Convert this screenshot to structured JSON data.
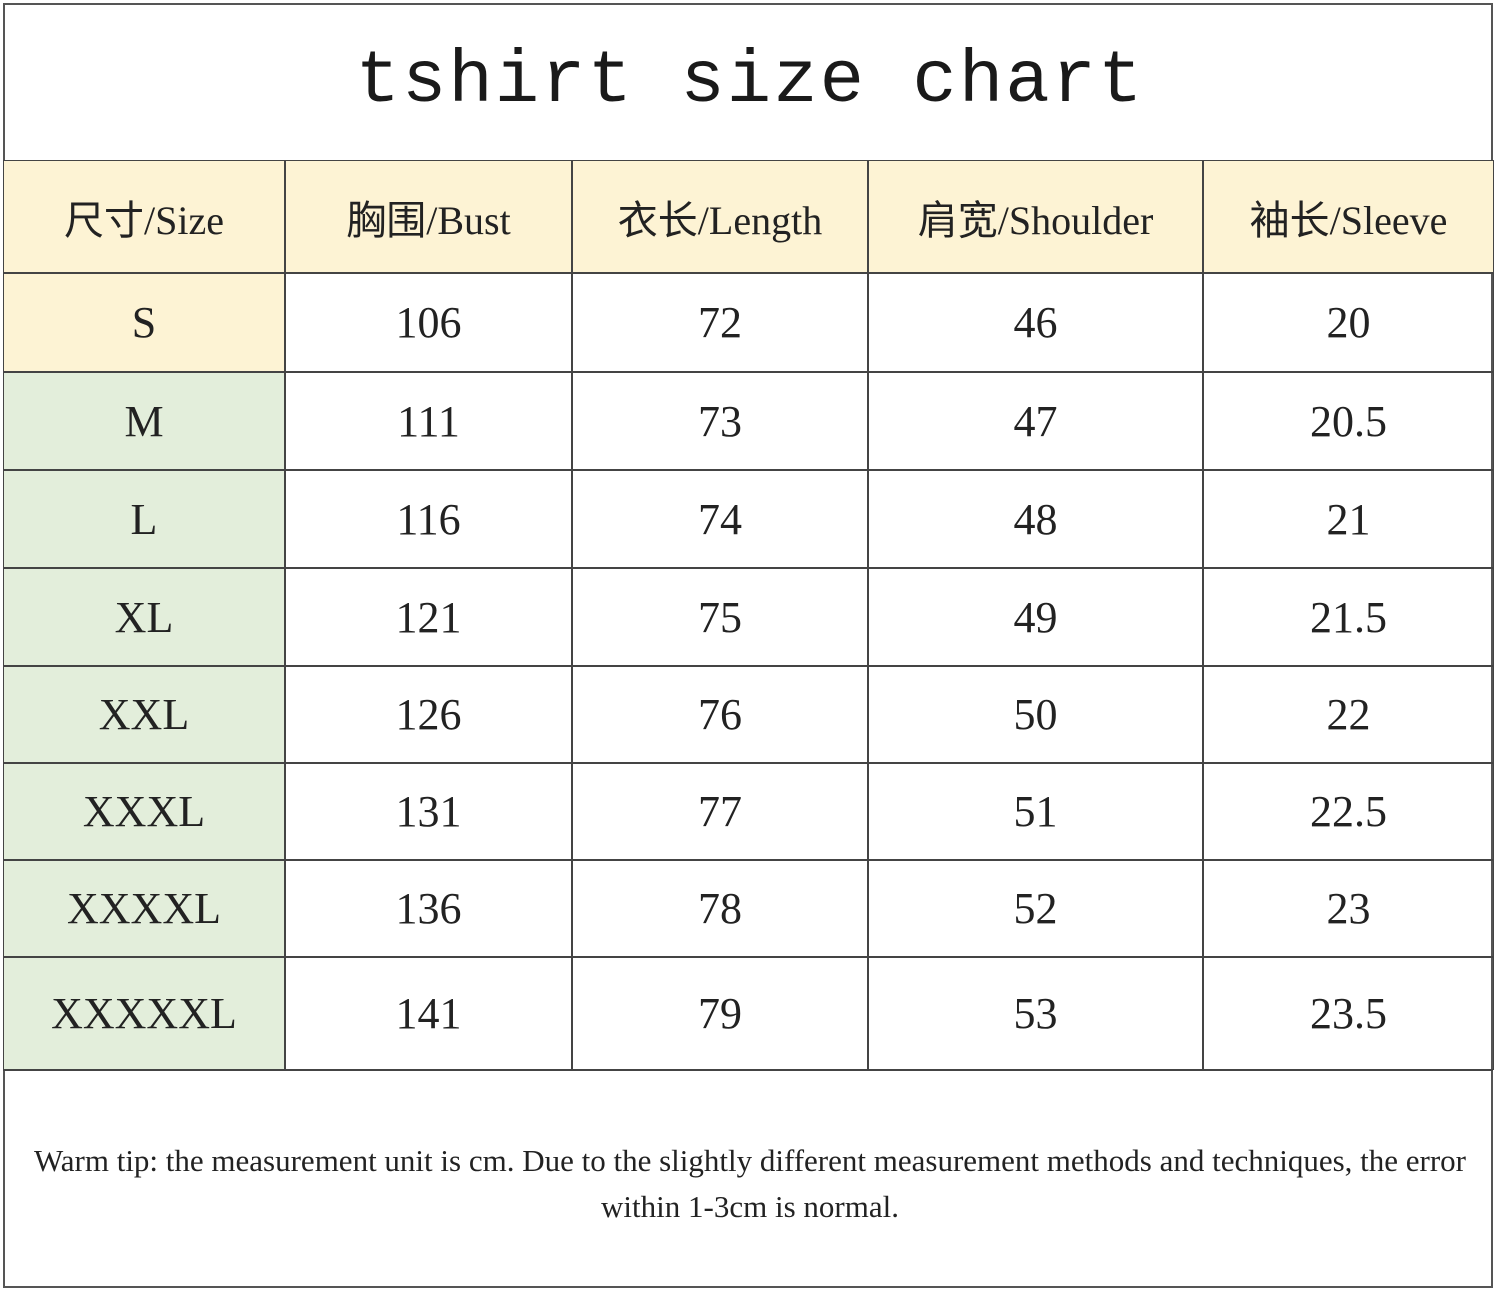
{
  "header": {
    "title": "tshirt size chart"
  },
  "table": {
    "columns": [
      "尺寸/Size",
      "胸围/Bust",
      "衣长/Length",
      "肩宽/Shoulder",
      "袖长/Sleeve"
    ],
    "rows": [
      [
        "S",
        106,
        72,
        46,
        20
      ],
      [
        "M",
        111,
        73,
        47,
        20.5
      ],
      [
        "L",
        116,
        74,
        48,
        21
      ],
      [
        "XL",
        121,
        75,
        49,
        21.5
      ],
      [
        "XXL",
        126,
        76,
        50,
        22
      ],
      [
        "XXXL",
        131,
        77,
        51,
        22.5
      ],
      [
        "XXXXL",
        136,
        78,
        52,
        23
      ],
      [
        "XXXXXL",
        141,
        79,
        53,
        23.5
      ]
    ]
  },
  "note": "Warm tip: the measurement unit is cm. Due to the slightly different measurement methods and techniques, the error within 1-3cm is normal."
}
